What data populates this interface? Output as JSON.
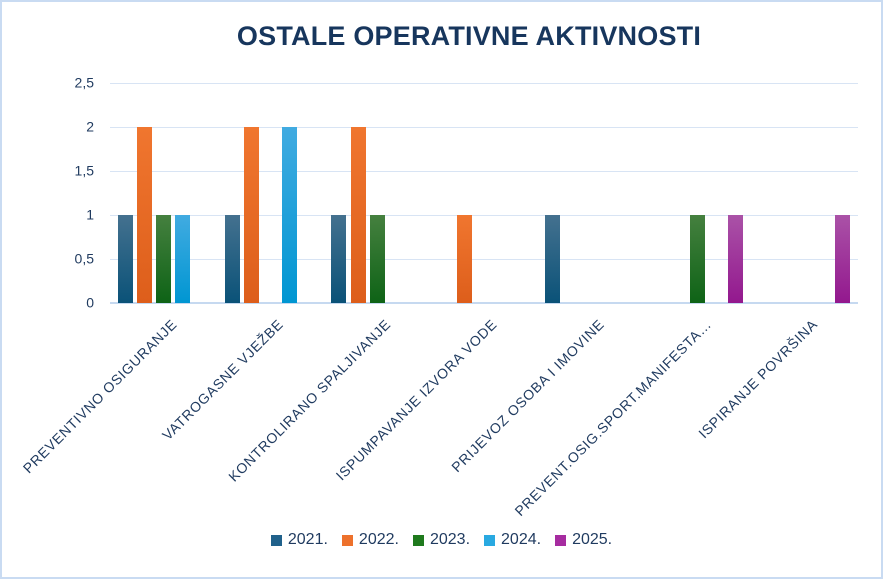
{
  "chart_data": {
    "type": "bar",
    "title": "OSTALE OPERATIVNE AKTIVNOSTI",
    "categories": [
      "PREVENTIVNO OSIGURANJE",
      "VATROGASNE VJEŽBE",
      "KONTROLIRANO SPALJIVANJE",
      "ISPUMPAVANJE IZVORA VODE",
      "PRIJEVOZ OSOBA I IMOVINE",
      "PREVENT.OSIG.SPORT.MANIFESTA…",
      "ISPIRANJE POVRŠINA"
    ],
    "series": [
      {
        "name": "2021.",
        "color": "#20618B",
        "color_top": "#44718F",
        "color_bottom": "#0A5278",
        "values": [
          1,
          1,
          1,
          0,
          1,
          0,
          0
        ]
      },
      {
        "name": "2022.",
        "color": "#ED712C",
        "color_top": "#F0762F",
        "color_bottom": "#DD5E1B",
        "values": [
          2,
          2,
          2,
          1,
          0,
          0,
          0
        ]
      },
      {
        "name": "2023.",
        "color": "#1F7A1D",
        "color_top": "#45803F",
        "color_bottom": "#0E6316",
        "values": [
          1,
          0,
          1,
          0,
          0,
          1,
          0
        ]
      },
      {
        "name": "2024.",
        "color": "#29A9E1",
        "color_top": "#41ABE1",
        "color_bottom": "#0096D2",
        "values": [
          1,
          2,
          0,
          0,
          0,
          0,
          0
        ]
      },
      {
        "name": "2025.",
        "color": "#A62CA0",
        "color_top": "#AA52A7",
        "color_bottom": "#93188E",
        "values": [
          0,
          0,
          0,
          0,
          0,
          1,
          1
        ]
      }
    ],
    "y_ticks": [
      "0",
      "0,5",
      "1",
      "1,5",
      "2",
      "2,5"
    ],
    "ylim": [
      0,
      2.5
    ],
    "grid": true,
    "legend_position": "bottom",
    "xlabel": "",
    "ylabel": ""
  },
  "colors": {
    "background": "#FFFFFF",
    "border": "#C9DBF2",
    "gridline": "#D8E4F4",
    "axis_line": "#C6D9F0",
    "title_text": "#17365D",
    "axis_text": "#1F3A5F"
  }
}
